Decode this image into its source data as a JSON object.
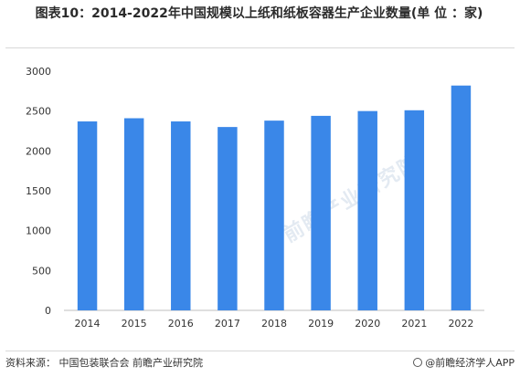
{
  "title": "图表10：2014-2022年中国规模以上纸和纸板容器生产企业数量(单 位 ：家)",
  "footer": {
    "source": "资料来源：  中国包装联合会 前瞻产业研究院",
    "brand": "@前瞻经济学人APP"
  },
  "watermark": {
    "text": "前瞻产业研究院"
  },
  "colors": {
    "bar": "#3a87e8",
    "axis": "#bfbfbf",
    "text": "#333333"
  },
  "chart_data": {
    "type": "bar",
    "categories": [
      "2014",
      "2015",
      "2016",
      "2017",
      "2018",
      "2019",
      "2020",
      "2021",
      "2022"
    ],
    "values": [
      2370,
      2410,
      2370,
      2300,
      2380,
      2440,
      2500,
      2510,
      2820
    ],
    "title": "",
    "xlabel": "",
    "ylabel": "",
    "ylim": [
      0,
      3000
    ],
    "yticks": [
      0,
      500,
      1000,
      1500,
      2000,
      2500,
      3000
    ],
    "grid": false
  }
}
